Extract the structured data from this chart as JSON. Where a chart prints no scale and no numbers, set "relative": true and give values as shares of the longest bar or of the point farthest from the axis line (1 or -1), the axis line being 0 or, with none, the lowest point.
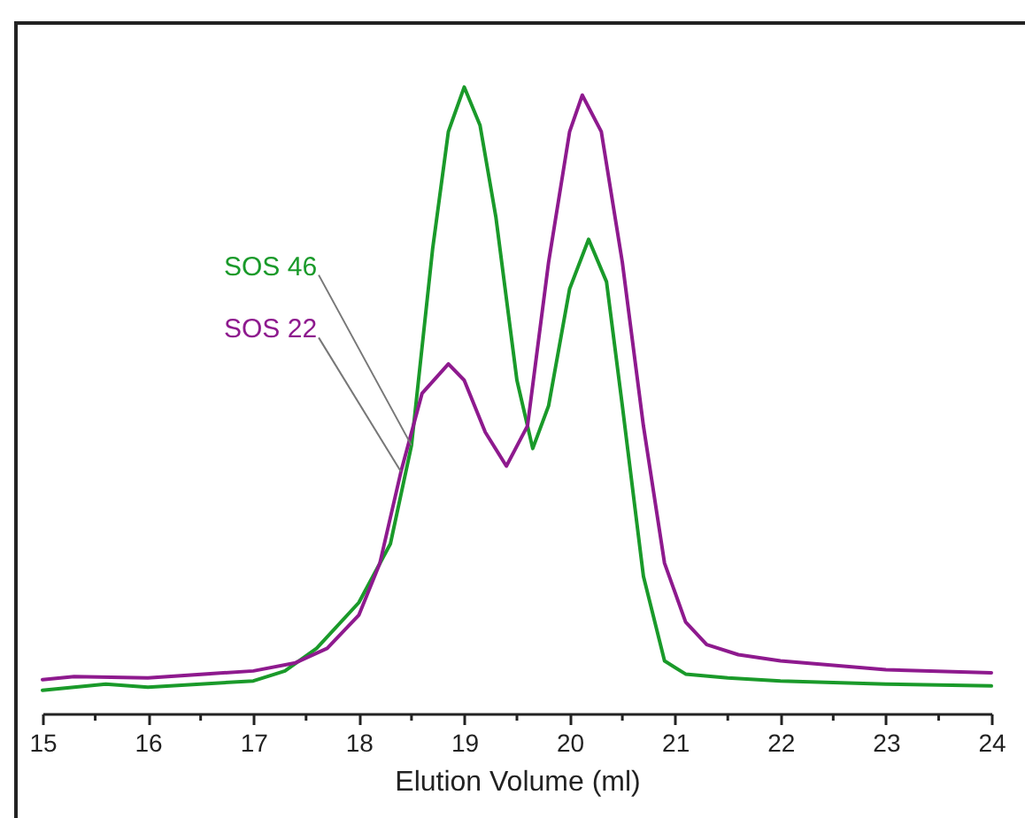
{
  "chart_data": {
    "type": "line",
    "relative": true,
    "xlabel": "Elution Volume (ml)",
    "xlim": [
      15,
      24
    ],
    "xticks": [
      15,
      {
        "value": 15.5,
        "label": null
      },
      16,
      {
        "value": 16.5,
        "label": null
      },
      17,
      {
        "value": 17.5,
        "label": null
      },
      18,
      {
        "value": 18.5,
        "label": null
      },
      19,
      {
        "value": 19.5,
        "label": null
      },
      20,
      {
        "value": 20.5,
        "label": null
      },
      21,
      {
        "value": 21.5,
        "label": null
      },
      22,
      {
        "value": 22.5,
        "label": null
      },
      23,
      {
        "value": 23.5,
        "label": null
      },
      24
    ],
    "grid": false,
    "line_style": "solid",
    "marker": "none",
    "series": [
      {
        "name": "SOS 46",
        "color": "#1a9a2a",
        "x": [
          15,
          15.6,
          16,
          17,
          17.3,
          17.6,
          18,
          18.3,
          18.5,
          18.7,
          18.85,
          19,
          19.15,
          19.3,
          19.5,
          19.65,
          19.8,
          20,
          20.18,
          20.35,
          20.5,
          20.7,
          20.9,
          21.1,
          21.5,
          22,
          23,
          24
        ],
        "values": [
          0.037,
          0.047,
          0.042,
          0.052,
          0.068,
          0.104,
          0.177,
          0.271,
          0.428,
          0.741,
          0.929,
          1.0,
          0.939,
          0.793,
          0.532,
          0.423,
          0.491,
          0.678,
          0.757,
          0.689,
          0.491,
          0.219,
          0.084,
          0.063,
          0.057,
          0.052,
          0.047,
          0.044
        ]
      },
      {
        "name": "SOS 22",
        "color": "#8e1a8e",
        "x": [
          15,
          15.3,
          16,
          17,
          17.4,
          17.7,
          18,
          18.2,
          18.4,
          18.6,
          18.85,
          19,
          19.2,
          19.4,
          19.6,
          19.8,
          20,
          20.12,
          20.3,
          20.5,
          20.7,
          20.9,
          21.1,
          21.3,
          21.6,
          22,
          23,
          24
        ],
        "values": [
          0.054,
          0.059,
          0.057,
          0.068,
          0.081,
          0.104,
          0.157,
          0.24,
          0.386,
          0.511,
          0.558,
          0.532,
          0.449,
          0.395,
          0.459,
          0.72,
          0.929,
          0.987,
          0.929,
          0.72,
          0.459,
          0.24,
          0.146,
          0.11,
          0.094,
          0.084,
          0.07,
          0.065
        ]
      }
    ]
  }
}
